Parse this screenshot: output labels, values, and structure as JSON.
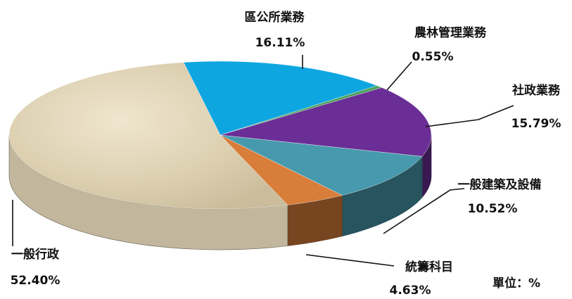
{
  "chart_data": {
    "type": "pie",
    "slices": [
      {
        "label": "區公所業務",
        "value": 16.11,
        "display": "16.11%",
        "color": "#0ea6e0"
      },
      {
        "label": "農林管理業務",
        "value": 0.55,
        "display": "0.55%",
        "color": "#4aa05a"
      },
      {
        "label": "社政業務",
        "value": 15.79,
        "display": "15.79%",
        "color": "#6a2e96"
      },
      {
        "label": "一般建築及設備",
        "value": 10.52,
        "display": "10.52%",
        "color": "#4799ad"
      },
      {
        "label": "統籌科目",
        "value": 4.63,
        "display": "4.63%",
        "color": "#d87d3a"
      },
      {
        "label": "一般行政",
        "value": 52.4,
        "display": "52.40%",
        "color": "#dccfb1"
      }
    ]
  },
  "unit_label": "單位：%"
}
